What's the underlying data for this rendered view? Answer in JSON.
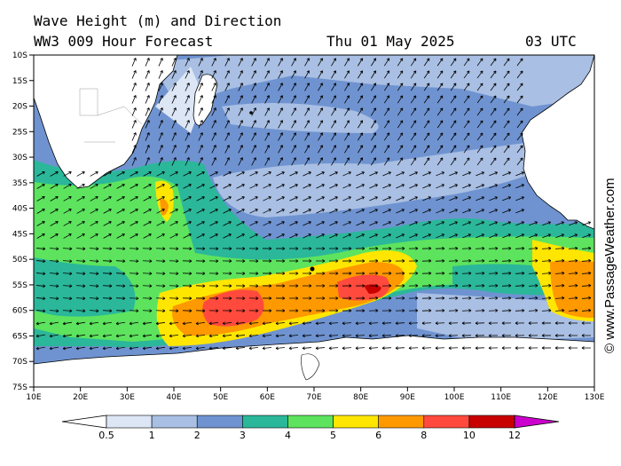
{
  "header": {
    "line1": "Wave Height (m) and Direction",
    "model": "WW3 009 Hour Forecast",
    "date": "Thu 01 May 2025",
    "time": "03 UTC"
  },
  "credit": "© www.PassageWeather.com",
  "axes": {
    "lat_labels": [
      "10S",
      "15S",
      "20S",
      "25S",
      "30S",
      "35S",
      "40S",
      "45S",
      "50S",
      "55S",
      "60S",
      "65S",
      "70S",
      "75S"
    ],
    "lon_labels": [
      "10E",
      "20E",
      "30E",
      "40E",
      "50E",
      "60E",
      "70E",
      "80E",
      "90E",
      "100E",
      "110E",
      "120E",
      "130E"
    ]
  },
  "legend": {
    "ticks": [
      "0.5",
      "1",
      "2",
      "3",
      "4",
      "5",
      "6",
      "8",
      "10",
      "12"
    ],
    "colors": [
      "#ffffff",
      "#dce6f5",
      "#a9bfe3",
      "#6f93d0",
      "#2bb79a",
      "#5de35e",
      "#ffe600",
      "#ff9900",
      "#ff4a3d",
      "#c80000",
      "#cc00cc"
    ]
  },
  "map": {
    "land_color": "#ffffff",
    "background_color": "#6f93d0",
    "arrow_color": "#000000"
  }
}
